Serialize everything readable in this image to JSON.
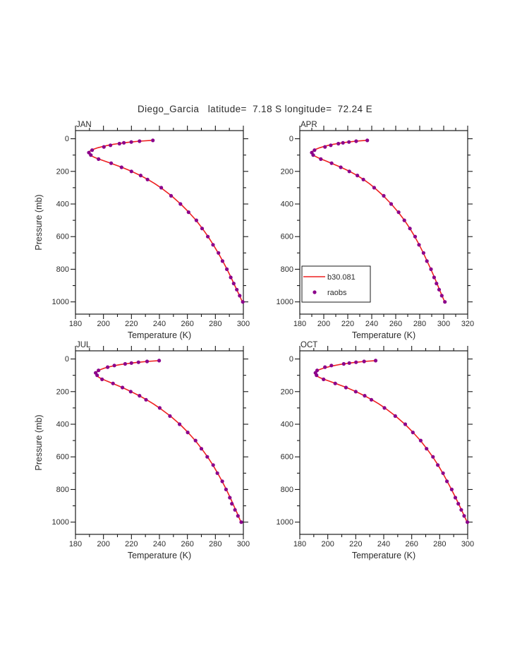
{
  "chart_data": {
    "type": "line",
    "title": "Diego_Garcia   latitude=  7.18 S longitude=  72.24 E",
    "station": {
      "name": "Diego_Garcia",
      "latitude": "7.18 S",
      "longitude": "72.24 E"
    },
    "xlabel": "Temperature (K)",
    "ylabel": "Pressure (mb)",
    "y_axis": {
      "ticks": [
        0,
        200,
        400,
        600,
        800,
        1000
      ],
      "minor_step": 100,
      "display_range": [
        -50,
        1075
      ],
      "inverted": true
    },
    "legend": {
      "position": "inside APR panel, lower-left",
      "entries": [
        {
          "type": "line",
          "label": "b30.081",
          "color": "#ee2020"
        },
        {
          "type": "dot",
          "label": "raobs",
          "color": "#8b008b"
        }
      ]
    },
    "colors": {
      "model_line": "#ee2020",
      "obs_dot": "#8b008b",
      "axis": "#1a1a1a",
      "text": "#2b2b2b"
    },
    "panels": [
      {
        "label": "JAN",
        "x_range": [
          180,
          300
        ],
        "x_ticks": [
          180,
          200,
          220,
          240,
          260,
          280,
          300
        ],
        "x_minor_step": 10,
        "model_line": [
          [
            1000,
            299.3
          ],
          [
            950,
            296.6
          ],
          [
            900,
            293.9
          ],
          [
            850,
            291.2
          ],
          [
            800,
            288.3
          ],
          [
            750,
            285.3
          ],
          [
            700,
            282.0
          ],
          [
            650,
            278.5
          ],
          [
            600,
            274.8
          ],
          [
            550,
            270.7
          ],
          [
            500,
            266.2
          ],
          [
            450,
            261.0
          ],
          [
            400,
            255.2
          ],
          [
            350,
            248.6
          ],
          [
            300,
            241.0
          ],
          [
            275,
            236.6
          ],
          [
            250,
            231.8
          ],
          [
            225,
            226.4
          ],
          [
            200,
            220.2
          ],
          [
            175,
            213.2
          ],
          [
            150,
            205.2
          ],
          [
            135,
            200.2
          ],
          [
            125,
            196.8
          ],
          [
            115,
            193.8
          ],
          [
            105,
            191.4
          ],
          [
            95,
            190.0
          ],
          [
            85,
            189.6
          ],
          [
            75,
            190.4
          ],
          [
            65,
            192.6
          ],
          [
            55,
            196.0
          ],
          [
            45,
            200.6
          ],
          [
            40,
            203.4
          ],
          [
            35,
            206.6
          ],
          [
            30,
            210.4
          ],
          [
            25,
            214.6
          ],
          [
            20,
            219.6
          ],
          [
            15,
            225.8
          ],
          [
            10,
            234.0
          ]
        ],
        "obs": [
          [
            1000,
            299.6
          ],
          [
            962,
            297.4
          ],
          [
            925,
            295.3
          ],
          [
            887,
            293.1
          ],
          [
            850,
            291.0
          ],
          [
            800,
            288.2
          ],
          [
            750,
            285.1
          ],
          [
            700,
            282.2
          ],
          [
            650,
            278.3
          ],
          [
            600,
            274.6
          ],
          [
            550,
            270.5
          ],
          [
            500,
            266.4
          ],
          [
            450,
            260.8
          ],
          [
            400,
            255.0
          ],
          [
            350,
            248.3
          ],
          [
            300,
            241.3
          ],
          [
            250,
            231.5
          ],
          [
            225,
            226.6
          ],
          [
            200,
            220.0
          ],
          [
            175,
            212.9
          ],
          [
            150,
            205.5
          ],
          [
            125,
            196.5
          ],
          [
            100,
            191.0
          ],
          [
            85,
            189.6
          ],
          [
            70,
            191.9
          ],
          [
            50,
            200.3
          ],
          [
            40,
            205.0
          ],
          [
            30,
            211.4
          ],
          [
            25,
            214.6
          ],
          [
            20,
            219.9
          ],
          [
            15,
            225.8
          ],
          [
            10,
            235.3
          ]
        ]
      },
      {
        "label": "APR",
        "x_range": [
          180,
          320
        ],
        "x_ticks": [
          180,
          200,
          220,
          240,
          260,
          280,
          300,
          320
        ],
        "x_minor_step": 10,
        "model_line": [
          [
            1000,
            300.8
          ],
          [
            950,
            297.9
          ],
          [
            900,
            295.1
          ],
          [
            850,
            292.3
          ],
          [
            800,
            289.3
          ],
          [
            750,
            286.2
          ],
          [
            700,
            283.0
          ],
          [
            650,
            279.6
          ],
          [
            600,
            275.9
          ],
          [
            550,
            271.8
          ],
          [
            500,
            267.3
          ],
          [
            450,
            262.1
          ],
          [
            400,
            256.3
          ],
          [
            350,
            249.7
          ],
          [
            300,
            242.2
          ],
          [
            275,
            238.0
          ],
          [
            250,
            233.2
          ],
          [
            225,
            227.8
          ],
          [
            200,
            221.6
          ],
          [
            175,
            214.4
          ],
          [
            150,
            206.3
          ],
          [
            135,
            201.4
          ],
          [
            125,
            197.9
          ],
          [
            115,
            194.8
          ],
          [
            105,
            192.2
          ],
          [
            95,
            190.6
          ],
          [
            85,
            190.2
          ],
          [
            75,
            191.0
          ],
          [
            65,
            193.2
          ],
          [
            55,
            196.6
          ],
          [
            45,
            201.2
          ],
          [
            40,
            204.0
          ],
          [
            35,
            207.4
          ],
          [
            30,
            211.2
          ],
          [
            25,
            215.4
          ],
          [
            20,
            220.4
          ],
          [
            15,
            226.8
          ],
          [
            10,
            235.2
          ]
        ],
        "obs": [
          [
            1000,
            301.0
          ],
          [
            962,
            298.4
          ],
          [
            925,
            296.2
          ],
          [
            887,
            294.0
          ],
          [
            850,
            292.0
          ],
          [
            800,
            289.4
          ],
          [
            750,
            286.0
          ],
          [
            700,
            283.2
          ],
          [
            650,
            279.4
          ],
          [
            600,
            276.2
          ],
          [
            550,
            271.8
          ],
          [
            500,
            267.2
          ],
          [
            450,
            262.4
          ],
          [
            400,
            256.2
          ],
          [
            350,
            250.0
          ],
          [
            300,
            242.0
          ],
          [
            250,
            233.0
          ],
          [
            225,
            228.0
          ],
          [
            200,
            221.3
          ],
          [
            175,
            214.2
          ],
          [
            150,
            206.5
          ],
          [
            125,
            197.5
          ],
          [
            100,
            191.2
          ],
          [
            85,
            190.0
          ],
          [
            70,
            192.3
          ],
          [
            50,
            201.0
          ],
          [
            40,
            205.8
          ],
          [
            30,
            212.2
          ],
          [
            25,
            216.0
          ],
          [
            20,
            221.0
          ],
          [
            15,
            227.0
          ],
          [
            10,
            236.3
          ]
        ]
      },
      {
        "label": "JUL",
        "x_range": [
          180,
          300
        ],
        "x_ticks": [
          180,
          200,
          220,
          240,
          260,
          280,
          300
        ],
        "x_minor_step": 10,
        "model_line": [
          [
            1000,
            298.3
          ],
          [
            950,
            295.8
          ],
          [
            900,
            293.2
          ],
          [
            850,
            290.6
          ],
          [
            800,
            287.8
          ],
          [
            750,
            284.8
          ],
          [
            700,
            281.6
          ],
          [
            650,
            278.2
          ],
          [
            600,
            274.4
          ],
          [
            550,
            270.2
          ],
          [
            500,
            265.6
          ],
          [
            450,
            260.4
          ],
          [
            400,
            254.6
          ],
          [
            350,
            247.8
          ],
          [
            300,
            240.0
          ],
          [
            275,
            235.6
          ],
          [
            250,
            230.8
          ],
          [
            225,
            225.6
          ],
          [
            200,
            219.8
          ],
          [
            175,
            213.6
          ],
          [
            150,
            206.6
          ],
          [
            135,
            202.4
          ],
          [
            125,
            199.6
          ],
          [
            115,
            197.2
          ],
          [
            105,
            195.6
          ],
          [
            95,
            194.8
          ],
          [
            85,
            194.8
          ],
          [
            75,
            195.8
          ],
          [
            65,
            197.8
          ],
          [
            55,
            201.0
          ],
          [
            45,
            205.6
          ],
          [
            40,
            208.4
          ],
          [
            35,
            211.8
          ],
          [
            30,
            215.6
          ],
          [
            25,
            220.0
          ],
          [
            20,
            225.2
          ],
          [
            15,
            231.4
          ],
          [
            10,
            239.6
          ]
        ],
        "obs": [
          [
            1000,
            298.5
          ],
          [
            962,
            296.1
          ],
          [
            925,
            294.0
          ],
          [
            887,
            291.8
          ],
          [
            850,
            290.3
          ],
          [
            800,
            287.6
          ],
          [
            750,
            284.9
          ],
          [
            700,
            281.4
          ],
          [
            650,
            278.4
          ],
          [
            600,
            274.2
          ],
          [
            550,
            270.0
          ],
          [
            500,
            265.8
          ],
          [
            450,
            260.2
          ],
          [
            400,
            254.4
          ],
          [
            350,
            247.5
          ],
          [
            300,
            240.2
          ],
          [
            250,
            230.4
          ],
          [
            225,
            225.8
          ],
          [
            200,
            219.5
          ],
          [
            175,
            213.6
          ],
          [
            150,
            206.8
          ],
          [
            125,
            199.0
          ],
          [
            100,
            195.5
          ],
          [
            85,
            194.4
          ],
          [
            70,
            196.5
          ],
          [
            50,
            203.0
          ],
          [
            40,
            207.8
          ],
          [
            30,
            215.5
          ],
          [
            25,
            220.0
          ],
          [
            20,
            225.0
          ],
          [
            15,
            231.2
          ],
          [
            10,
            239.8
          ]
        ]
      },
      {
        "label": "OCT",
        "x_range": [
          180,
          300
        ],
        "x_ticks": [
          180,
          200,
          220,
          240,
          260,
          280,
          300
        ],
        "x_minor_step": 10,
        "model_line": [
          [
            1000,
            299.6
          ],
          [
            950,
            296.9
          ],
          [
            900,
            294.2
          ],
          [
            850,
            291.4
          ],
          [
            800,
            288.4
          ],
          [
            750,
            285.4
          ],
          [
            700,
            282.2
          ],
          [
            650,
            278.8
          ],
          [
            600,
            275.0
          ],
          [
            550,
            270.8
          ],
          [
            500,
            266.2
          ],
          [
            450,
            261.0
          ],
          [
            400,
            255.2
          ],
          [
            350,
            248.4
          ],
          [
            300,
            240.8
          ],
          [
            275,
            236.4
          ],
          [
            250,
            231.6
          ],
          [
            225,
            226.2
          ],
          [
            200,
            220.2
          ],
          [
            175,
            213.4
          ],
          [
            150,
            205.6
          ],
          [
            135,
            200.8
          ],
          [
            125,
            197.4
          ],
          [
            115,
            194.4
          ],
          [
            105,
            192.2
          ],
          [
            95,
            191.0
          ],
          [
            85,
            190.8
          ],
          [
            75,
            191.8
          ],
          [
            65,
            194.0
          ],
          [
            55,
            197.4
          ],
          [
            45,
            202.0
          ],
          [
            40,
            204.8
          ],
          [
            35,
            208.0
          ],
          [
            30,
            211.6
          ],
          [
            25,
            215.6
          ],
          [
            20,
            220.4
          ],
          [
            15,
            226.2
          ],
          [
            10,
            234.0
          ]
        ],
        "obs": [
          [
            1000,
            299.8
          ],
          [
            962,
            297.5
          ],
          [
            925,
            295.4
          ],
          [
            887,
            293.3
          ],
          [
            850,
            291.2
          ],
          [
            800,
            288.6
          ],
          [
            750,
            285.2
          ],
          [
            700,
            282.4
          ],
          [
            650,
            278.6
          ],
          [
            600,
            275.2
          ],
          [
            550,
            270.6
          ],
          [
            500,
            266.4
          ],
          [
            450,
            260.8
          ],
          [
            400,
            255.4
          ],
          [
            350,
            248.2
          ],
          [
            300,
            240.5
          ],
          [
            250,
            231.2
          ],
          [
            225,
            226.4
          ],
          [
            200,
            220.0
          ],
          [
            175,
            213.0
          ],
          [
            150,
            205.3
          ],
          [
            125,
            197.0
          ],
          [
            100,
            192.0
          ],
          [
            85,
            191.2
          ],
          [
            70,
            192.4
          ],
          [
            50,
            198.0
          ],
          [
            40,
            202.6
          ],
          [
            30,
            211.4
          ],
          [
            25,
            215.4
          ],
          [
            20,
            220.2
          ],
          [
            15,
            226.0
          ],
          [
            10,
            234.2
          ]
        ]
      }
    ]
  }
}
